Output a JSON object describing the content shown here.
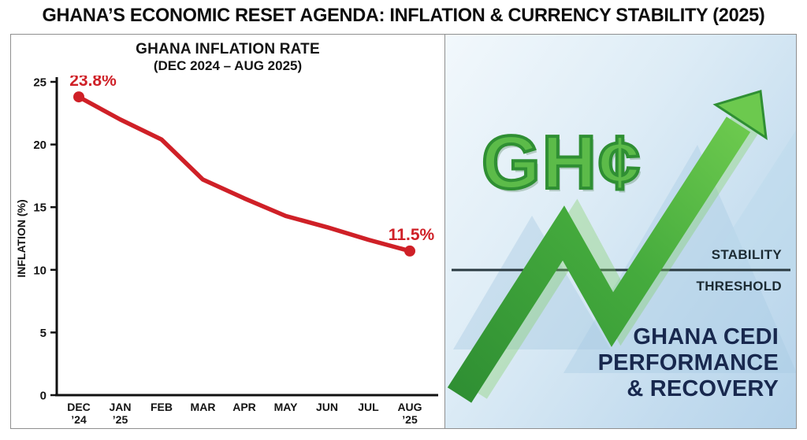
{
  "header": {
    "title": "GHANA’S ECONOMIC RESET AGENDA: INFLATION & CURRENCY STABILITY (2025)"
  },
  "chart": {
    "title_line1": "GHANA INFLATION RATE",
    "title_line2": "(DEC 2024 – AUG 2025)"
  },
  "chart_data": {
    "type": "line",
    "title": "GHANA INFLATION RATE (DEC 2024 – AUG 2025)",
    "xlabel": "",
    "ylabel": "INFLATION (%)",
    "ylim": [
      0,
      25
    ],
    "yticks": [
      0,
      5,
      10,
      15,
      20,
      25
    ],
    "categories": [
      [
        "DEC",
        "’24"
      ],
      [
        "JAN",
        "’25"
      ],
      [
        "FEB"
      ],
      [
        "MAR"
      ],
      [
        "APR"
      ],
      [
        "MAY"
      ],
      [
        "JUN"
      ],
      [
        "JUL"
      ],
      [
        "AUG",
        "’25"
      ]
    ],
    "values": [
      23.8,
      22.0,
      20.4,
      17.2,
      15.7,
      14.3,
      13.4,
      12.4,
      11.5
    ],
    "line_color": "#cf2027",
    "grid": false,
    "legend": "none",
    "annotations": [
      {
        "index": 0,
        "label": "23.8%"
      },
      {
        "index": 8,
        "label": "11.5%"
      }
    ]
  },
  "right_panel": {
    "currency_symbol": "GH¢",
    "stability_label_line1": "STABILITY",
    "stability_label_line2": "THRESHOLD",
    "caption_line1": "GHANA CEDI",
    "caption_line2": "PERFORMANCE",
    "caption_line3": "& RECOVERY",
    "colors": {
      "arrow_green_dark": "#2f8f33",
      "arrow_green_light": "#6cc94e",
      "symbol_green": "#5cbb49",
      "caption_navy": "#18284e",
      "threshold_line": "#2b3b42",
      "inflation_line_red": "#cf2027"
    }
  }
}
